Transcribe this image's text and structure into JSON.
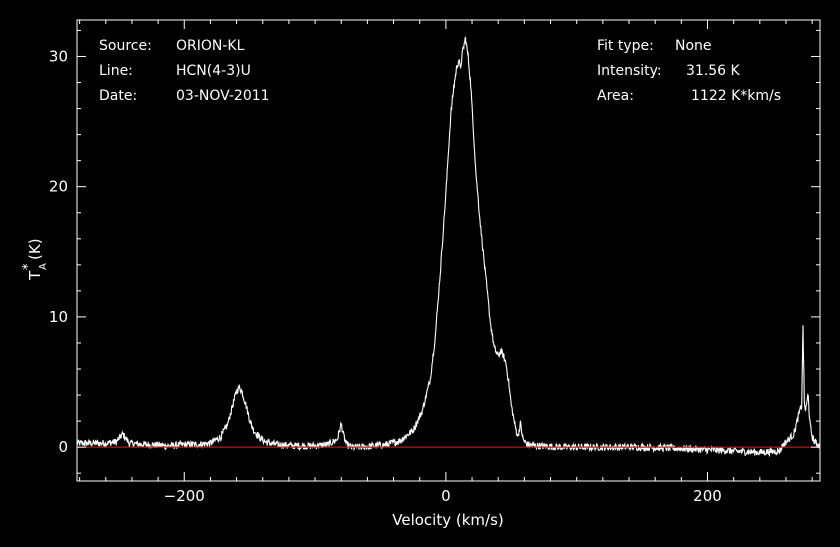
{
  "chart_data": {
    "type": "line",
    "xlabel": "Velocity (km/s)",
    "ylabel": "T",
    "ylabel_sup": "*",
    "ylabel_sub": "A",
    "ylabel_unit": "(K)",
    "xlim": [
      -282,
      286
    ],
    "ylim": [
      -2.6,
      32.8
    ],
    "xticks": [
      -200,
      0,
      200
    ],
    "yticks": [
      0,
      10,
      20,
      30
    ],
    "grid": false,
    "baseline": 0,
    "colors": {
      "background": "#000000",
      "trace": "#ffffff",
      "baseline": "#cc1111",
      "axes": "#ffffff"
    },
    "info_left": [
      {
        "key": "Source:",
        "value": "ORION-KL"
      },
      {
        "key": "Line:",
        "value": "HCN(4-3)U"
      },
      {
        "key": "Date:",
        "value": "03-NOV-2011"
      }
    ],
    "info_right": [
      {
        "key": "Fit type:",
        "value": "None"
      },
      {
        "key": "Intensity:",
        "value": "31.56 K"
      },
      {
        "key": "Area:",
        "value": "1122 K*km/s"
      }
    ],
    "series": [
      {
        "x": [
          -282,
          -260,
          -252,
          -247,
          -242,
          -230,
          -210,
          -200,
          -190,
          -180,
          -172,
          -167,
          -163,
          -160,
          -158,
          -156,
          -153,
          -150,
          -147,
          -143,
          -138,
          -130,
          -115,
          -100,
          -90,
          -83,
          -80,
          -78,
          -76,
          -72,
          -65,
          -55,
          -45,
          -35,
          -25,
          -18,
          -12,
          -8,
          -4,
          0,
          2,
          4,
          6,
          8,
          10,
          11,
          13,
          15,
          17,
          19,
          21,
          23,
          26,
          30,
          34,
          37,
          40,
          42,
          44,
          46,
          48,
          50,
          53,
          55,
          57,
          59,
          62,
          70,
          90,
          120,
          150,
          180,
          200,
          220,
          240,
          255,
          258,
          262,
          266,
          268,
          270,
          272,
          273,
          274,
          275,
          276,
          277,
          278,
          280,
          282,
          284,
          286
        ],
        "y": [
          0.3,
          0.3,
          0.4,
          1.0,
          0.3,
          0.2,
          0.1,
          0.2,
          0.2,
          0.3,
          0.8,
          1.7,
          3.2,
          4.3,
          4.6,
          4.3,
          3.3,
          2.1,
          1.3,
          0.8,
          0.4,
          0.2,
          0.1,
          0.1,
          0.2,
          0.6,
          1.8,
          0.8,
          0.2,
          0.0,
          0.0,
          0.1,
          0.2,
          0.5,
          1.3,
          2.8,
          5.2,
          8.6,
          13.8,
          19.5,
          22.8,
          25.8,
          27.6,
          29.0,
          29.8,
          29.0,
          30.5,
          31.4,
          30.0,
          27.8,
          24.4,
          21.0,
          17.5,
          13.5,
          9.6,
          7.6,
          7.0,
          7.4,
          7.0,
          6.4,
          5.0,
          3.2,
          1.6,
          0.8,
          1.8,
          0.6,
          0.2,
          0.1,
          0.0,
          0.0,
          0.0,
          -0.1,
          -0.2,
          -0.3,
          -0.4,
          -0.3,
          0.2,
          0.6,
          1.0,
          1.8,
          2.6,
          3.2,
          9.4,
          3.4,
          2.8,
          3.4,
          4.2,
          2.0,
          0.8,
          0.4,
          0.2,
          0.1
        ]
      }
    ]
  }
}
